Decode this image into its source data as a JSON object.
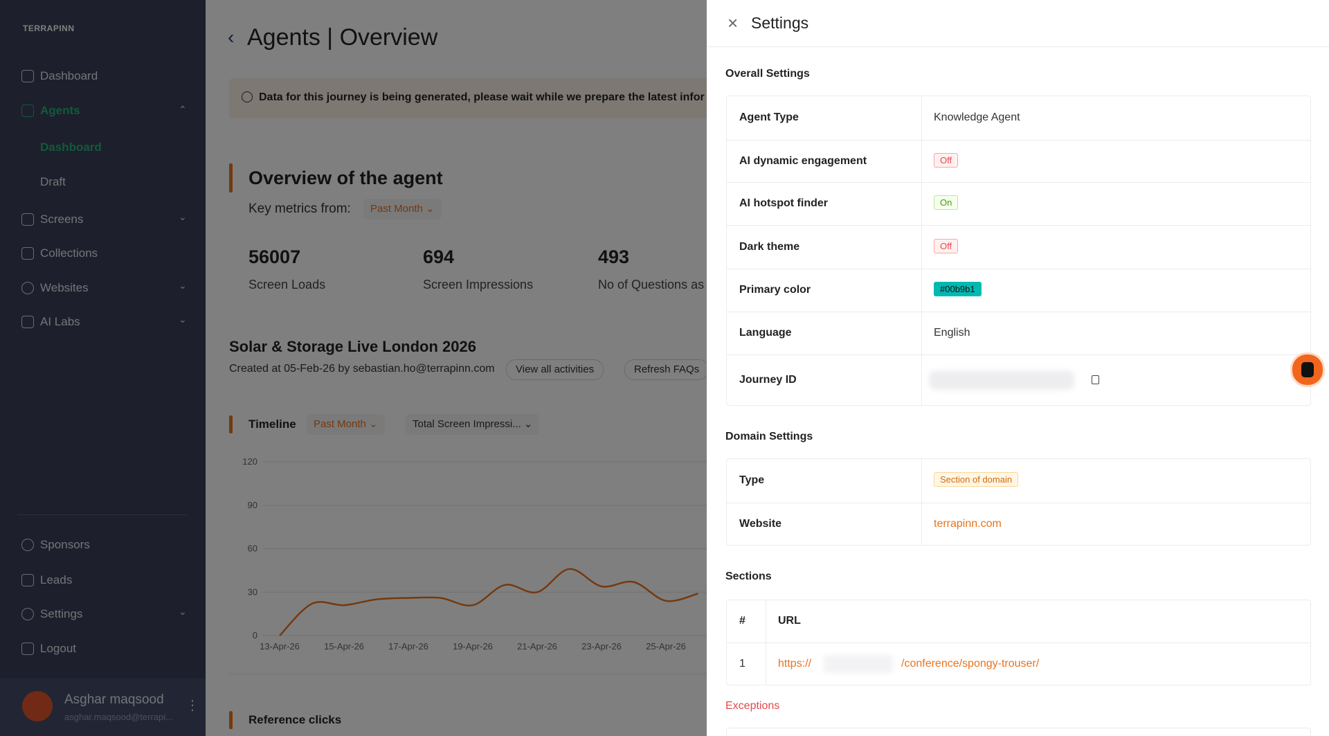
{
  "sidebar": {
    "logo": "TERRAPINN",
    "nav": [
      "Dashboard",
      "Agents",
      "Dashboard",
      "Draft",
      "Screens",
      "Collections",
      "Websites",
      "AI Labs"
    ],
    "bottom_nav": [
      "Sponsors",
      "Leads",
      "Settings",
      "Logout"
    ],
    "user": {
      "name": "Asghar maqsood",
      "email": "asghar.maqsood@terrapi..."
    }
  },
  "main": {
    "title": "Agents | Overview",
    "banner": "Data for this journey is being generated, please wait while we prepare the latest infor",
    "overview_title": "Overview of the agent",
    "key_metrics_label": "Key metrics from:",
    "period": "Past Month",
    "metrics": [
      {
        "value": "56007",
        "label": "Screen Loads"
      },
      {
        "value": "694",
        "label": "Screen Impressions"
      },
      {
        "value": "493",
        "label": "No of Questions as"
      }
    ],
    "event_title": "Solar & Storage Live London 2026",
    "created": "Created at 05-Feb-26 by sebastian.ho@terrapinn.com",
    "buttons": [
      "View all activities",
      "Refresh FAQs"
    ],
    "timeline": {
      "title": "Timeline",
      "period": "Past Month",
      "metric": "Total Screen Impressi...",
      "ylim": [
        0,
        120
      ],
      "yticks": [
        0,
        30,
        60,
        90,
        120
      ],
      "categories": [
        "13-Apr-26",
        null,
        "15-Apr-26",
        null,
        "17-Apr-26",
        null,
        "19-Apr-26",
        null,
        "21-Apr-26",
        null,
        "23-Apr-26",
        null,
        "25-Apr-26",
        null
      ],
      "values": [
        0,
        22,
        21,
        25,
        26,
        26,
        21,
        35,
        30,
        46,
        34,
        37,
        24,
        29
      ],
      "color": "#e8731e"
    },
    "reference_clicks": "Reference clicks"
  },
  "settings_panel": {
    "title": "Settings",
    "overall": {
      "heading": "Overall Settings",
      "rows": [
        [
          "Agent Type",
          "Knowledge Agent"
        ],
        [
          "AI dynamic engagement",
          "Off"
        ],
        [
          "AI hotspot finder",
          "On"
        ],
        [
          "Dark theme",
          "Off"
        ],
        [
          "Primary color",
          "#00b9b1"
        ],
        [
          "Language",
          "English"
        ],
        [
          "Journey ID"
        ]
      ]
    },
    "domain": {
      "heading": "Domain Settings",
      "rows": [
        [
          "Type",
          "Section of domain"
        ],
        [
          "Website",
          "terrapinn.com"
        ]
      ]
    },
    "sections": {
      "heading": "Sections",
      "columns": [
        "#",
        "URL"
      ],
      "rows": [
        [
          "1",
          "https://",
          "/conference/spongy-trouser/"
        ]
      ]
    },
    "exceptions": {
      "heading": "Exceptions"
    }
  }
}
